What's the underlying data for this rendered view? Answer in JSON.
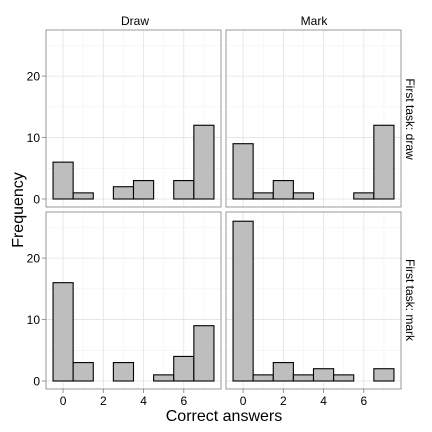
{
  "chart_data": {
    "type": "bar",
    "xlabel": "Correct answers",
    "ylabel": "Frequency",
    "xlim": [
      -0.85,
      7.85
    ],
    "ylim": [
      -1.3,
      27.5
    ],
    "x_ticks": [
      0,
      2,
      4,
      6
    ],
    "y_ticks": [
      0,
      10,
      20
    ],
    "x_minor_gridlines": [
      1,
      3,
      5,
      7
    ],
    "y_minor_gridlines": [
      5,
      15,
      25
    ],
    "grid": true,
    "bin_width": 1,
    "bins": [
      0,
      1,
      2,
      3,
      4,
      5,
      6,
      7
    ],
    "column_strips": [
      "Draw",
      "Mark"
    ],
    "row_strips": [
      "First task: draw",
      "First task: mark"
    ],
    "bar_fill": "#bebebe",
    "bar_stroke": "#000000",
    "panels": [
      {
        "row": 0,
        "col": 0,
        "values": [
          6,
          1,
          0,
          2,
          3,
          0,
          3,
          12
        ]
      },
      {
        "row": 0,
        "col": 1,
        "values": [
          9,
          1,
          3,
          1,
          0,
          0,
          1,
          12
        ]
      },
      {
        "row": 1,
        "col": 0,
        "values": [
          16,
          3,
          0,
          3,
          0,
          1,
          4,
          9
        ]
      },
      {
        "row": 1,
        "col": 1,
        "values": [
          26,
          1,
          3,
          1,
          2,
          1,
          0,
          2
        ]
      }
    ]
  }
}
